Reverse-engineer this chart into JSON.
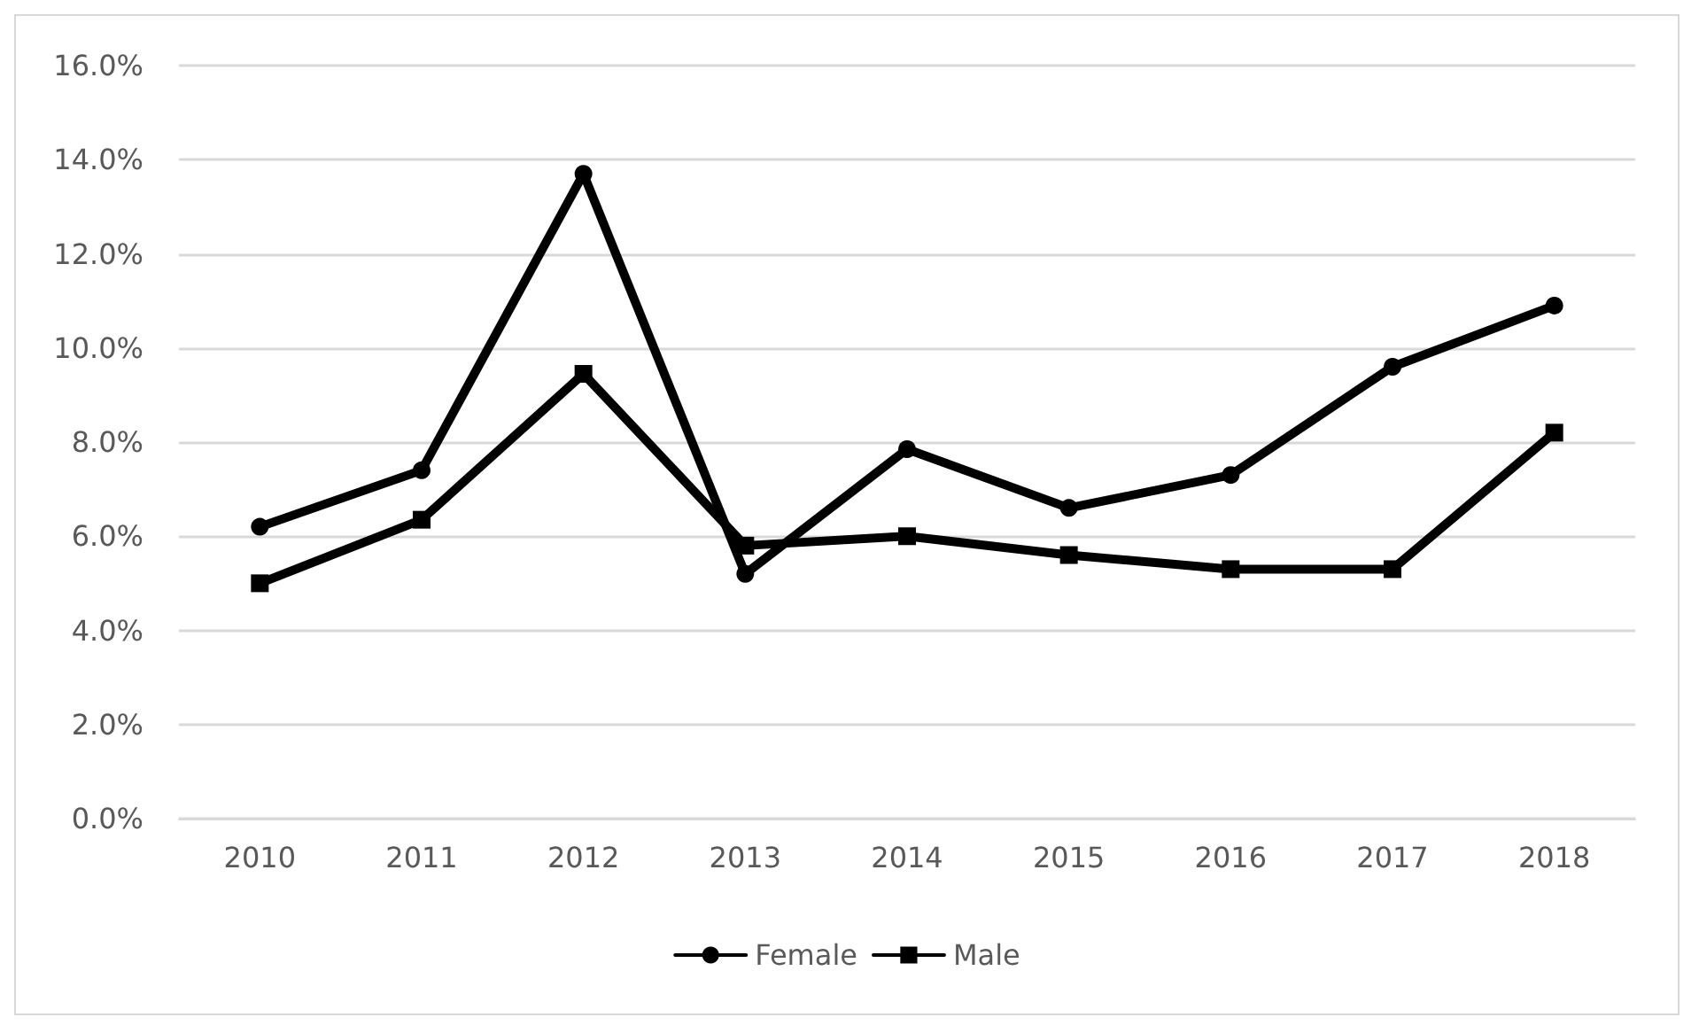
{
  "chart_data": {
    "type": "line",
    "categories": [
      "2010",
      "2011",
      "2012",
      "2013",
      "2014",
      "2015",
      "2016",
      "2017",
      "2018"
    ],
    "series": [
      {
        "name": "Female",
        "color": "#000000",
        "marker": "circle",
        "values": [
          6.2,
          7.4,
          13.7,
          5.2,
          7.85,
          6.6,
          7.3,
          9.6,
          10.9
        ]
      },
      {
        "name": "Male",
        "color": "#000000",
        "marker": "square",
        "values": [
          5.0,
          6.35,
          9.45,
          5.8,
          6.0,
          5.6,
          5.3,
          5.3,
          8.2
        ]
      }
    ],
    "ylim": [
      0,
      16
    ],
    "yticks": [
      {
        "value": 0,
        "label": "0.0%"
      },
      {
        "value": 2,
        "label": "2.0%"
      },
      {
        "value": 4,
        "label": "4.0%"
      },
      {
        "value": 6,
        "label": "6.0%"
      },
      {
        "value": 8,
        "label": "8.0%"
      },
      {
        "value": 10,
        "label": "10.0%"
      },
      {
        "value": 12,
        "label": "12.0%"
      },
      {
        "value": 14,
        "label": "14.0%"
      },
      {
        "value": 16,
        "label": "16.0%"
      }
    ],
    "grid": "y",
    "legend": "bottom",
    "line_style": "solid"
  }
}
